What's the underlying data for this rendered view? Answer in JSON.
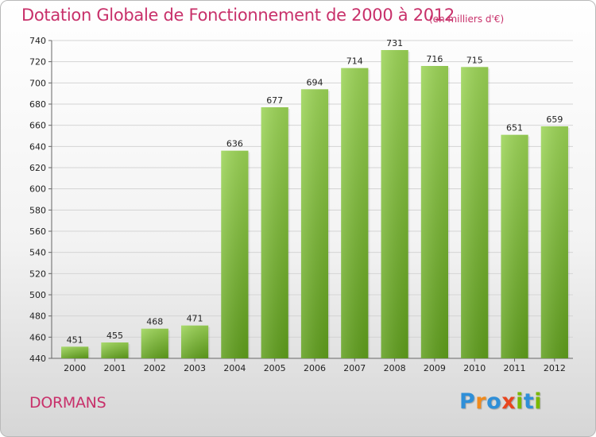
{
  "header": {
    "title": "Dotation Globale de Fonctionnement de 2000 à 2012",
    "subtitle": "(en milliers d'€)"
  },
  "footer": {
    "place": "DORMANS",
    "logo_letters": [
      "P",
      "r",
      "o",
      "x",
      "i",
      "t",
      "i"
    ],
    "logo_colors": [
      "#2f8fd8",
      "#f08a1c",
      "#2f8fd8",
      "#e8451e",
      "#7ab800",
      "#2f8fd8",
      "#7ab800"
    ]
  },
  "chart_data": {
    "type": "bar",
    "title": "Dotation Globale de Fonctionnement de 2000 à 2012",
    "subtitle": "(en milliers d'€)",
    "categories": [
      "2000",
      "2001",
      "2002",
      "2003",
      "2004",
      "2005",
      "2006",
      "2007",
      "2008",
      "2009",
      "2010",
      "2011",
      "2012"
    ],
    "values": [
      451,
      455,
      468,
      471,
      636,
      677,
      694,
      714,
      731,
      716,
      715,
      651,
      659
    ],
    "ylim": [
      440,
      740
    ],
    "yticks": [
      440,
      460,
      480,
      500,
      520,
      540,
      560,
      580,
      600,
      620,
      640,
      660,
      680,
      700,
      720,
      740
    ],
    "grid": true,
    "bar_color": "#7cc03a",
    "bar_color_light": "#9bd455",
    "bar_color_dark": "#5f9e1c"
  }
}
